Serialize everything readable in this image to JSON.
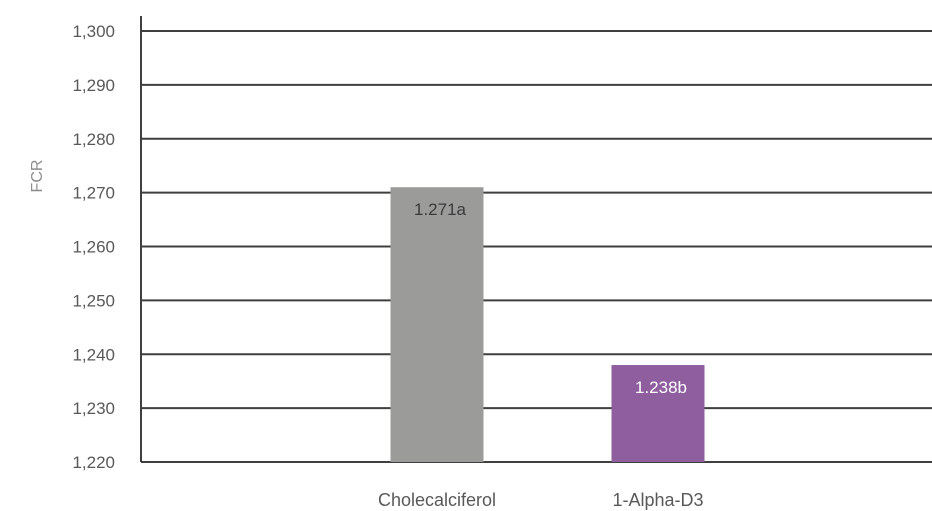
{
  "chart_data": {
    "type": "bar",
    "ylabel": "FCR",
    "categories": [
      "Cholecalciferol",
      "1-Alpha-D3"
    ],
    "values": [
      1.271,
      1.238
    ],
    "data_labels": [
      "1.271a",
      "1.238b"
    ],
    "bar_colors": [
      "#9b9b9a",
      "#8f5e9f"
    ],
    "data_label_colors": [
      "#3a3a3a",
      "#ffffff"
    ],
    "ylim": [
      1.22,
      1.3
    ],
    "yticks": [
      1.22,
      1.23,
      1.24,
      1.25,
      1.26,
      1.27,
      1.28,
      1.29,
      1.3
    ],
    "ytick_labels": [
      "1,220",
      "1,230",
      "1,240",
      "1,250",
      "1,260",
      "1,270",
      "1,280",
      "1,290",
      "1,300"
    ],
    "grid": true,
    "legend": "none",
    "colors": {
      "grid": "#3f3f3f",
      "text": "#595959",
      "axis_label": "#8c8c8c"
    }
  }
}
